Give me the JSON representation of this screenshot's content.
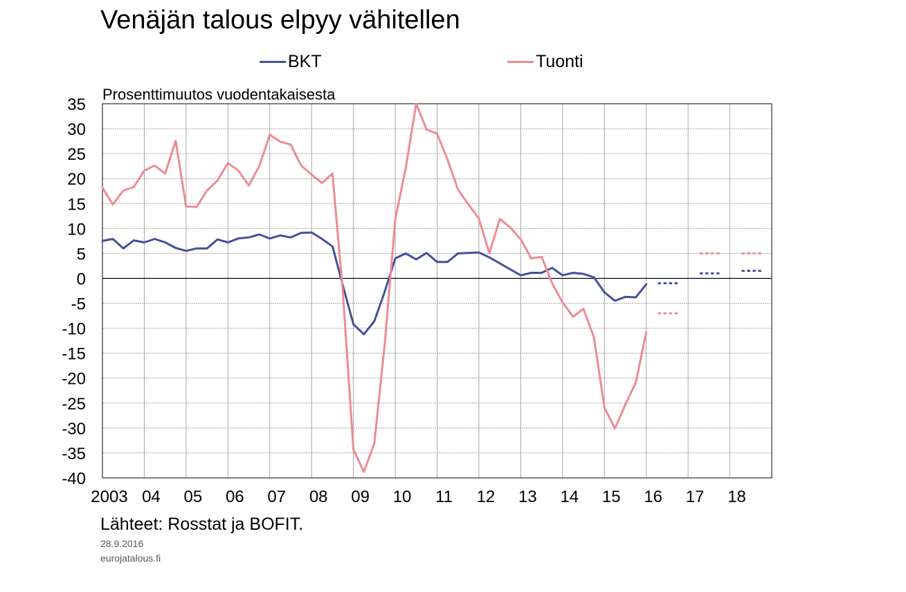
{
  "chart_data": {
    "type": "line",
    "title": "Venäjän talous elpyy vähitellen",
    "ylabel": "Prosenttimuutos vuodentakaisesta",
    "x_tick_labels": [
      "2003",
      "04",
      "05",
      "06",
      "07",
      "08",
      "09",
      "10",
      "11",
      "12",
      "13",
      "14",
      "15",
      "16",
      "17",
      "18"
    ],
    "y_tick_labels": [
      "35",
      "30",
      "25",
      "20",
      "15",
      "10",
      "5",
      "0",
      "-5",
      "-10",
      "-15",
      "-20",
      "-25",
      "-30",
      "-35",
      "-40"
    ],
    "ylim": [
      -40,
      35
    ],
    "xlim": [
      2003,
      2019
    ],
    "grid": true,
    "legend_position": "top",
    "series": [
      {
        "name": "BKT",
        "color": "#43509a",
        "x": [
          2003.0,
          2003.25,
          2003.5,
          2003.75,
          2004.0,
          2004.25,
          2004.5,
          2004.75,
          2005.0,
          2005.25,
          2005.5,
          2005.75,
          2006.0,
          2006.25,
          2006.5,
          2006.75,
          2007.0,
          2007.25,
          2007.5,
          2007.75,
          2008.0,
          2008.25,
          2008.5,
          2008.75,
          2009.0,
          2009.25,
          2009.5,
          2009.75,
          2010.0,
          2010.25,
          2010.5,
          2010.75,
          2011.0,
          2011.25,
          2011.5,
          2011.75,
          2012.0,
          2012.25,
          2012.5,
          2012.75,
          2013.0,
          2013.25,
          2013.5,
          2013.75,
          2014.0,
          2014.25,
          2014.5,
          2014.75,
          2015.0,
          2015.25,
          2015.5,
          2015.75,
          2016.0
        ],
        "values": [
          7.5,
          7.9,
          6.0,
          7.6,
          7.2,
          7.9,
          7.2,
          6.1,
          5.5,
          6.0,
          6.0,
          7.8,
          7.2,
          8.0,
          8.2,
          8.8,
          8.0,
          8.6,
          8.2,
          9.1,
          9.2,
          7.9,
          6.4,
          -1.5,
          -9.2,
          -11.2,
          -8.6,
          -2.6,
          4.0,
          5.0,
          3.8,
          5.1,
          3.3,
          3.3,
          5.0,
          5.1,
          5.2,
          4.2,
          3.0,
          1.8,
          0.6,
          1.1,
          1.1,
          2.1,
          0.6,
          1.1,
          0.9,
          0.2,
          -2.8,
          -4.5,
          -3.7,
          -3.8,
          -1.2
        ]
      },
      {
        "name": "Tuonti",
        "color": "#ee8a92",
        "x": [
          2003.0,
          2003.25,
          2003.5,
          2003.75,
          2004.0,
          2004.25,
          2004.5,
          2004.75,
          2005.0,
          2005.25,
          2005.5,
          2005.75,
          2006.0,
          2006.25,
          2006.5,
          2006.75,
          2007.0,
          2007.25,
          2007.5,
          2007.75,
          2008.0,
          2008.25,
          2008.5,
          2008.75,
          2009.0,
          2009.25,
          2009.5,
          2009.75,
          2010.0,
          2010.25,
          2010.5,
          2010.75,
          2011.0,
          2011.25,
          2011.5,
          2011.75,
          2012.0,
          2012.25,
          2012.5,
          2012.75,
          2013.0,
          2013.25,
          2013.5,
          2013.75,
          2014.0,
          2014.25,
          2014.5,
          2014.75,
          2015.0,
          2015.25,
          2015.5,
          2015.75,
          2016.0
        ],
        "values": [
          18.2,
          14.8,
          17.6,
          18.3,
          21.6,
          22.6,
          21.0,
          27.6,
          14.4,
          14.3,
          17.6,
          19.6,
          23.1,
          21.6,
          18.6,
          22.5,
          28.8,
          27.4,
          26.8,
          22.6,
          20.8,
          19.1,
          21.0,
          -3.0,
          -34.3,
          -38.8,
          -33.1,
          -13.0,
          11.9,
          22.1,
          35.0,
          29.8,
          29.0,
          23.8,
          17.8,
          14.8,
          12.0,
          5.0,
          11.9,
          10.2,
          7.8,
          4.0,
          4.3,
          -1.0,
          -4.8,
          -7.7,
          -6.1,
          -11.8,
          -25.9,
          -30.1,
          -25.3,
          -20.9,
          -10.8
        ]
      }
    ],
    "forecasts": [
      {
        "series": "BKT",
        "x0": 2016.3,
        "x1": 2016.75,
        "value": -1.0
      },
      {
        "series": "BKT",
        "x0": 2017.3,
        "x1": 2017.75,
        "value": 1.0
      },
      {
        "series": "BKT",
        "x0": 2018.3,
        "x1": 2018.75,
        "value": 1.5
      },
      {
        "series": "Tuonti",
        "x0": 2016.3,
        "x1": 2016.75,
        "value": -7.0
      },
      {
        "series": "Tuonti",
        "x0": 2017.3,
        "x1": 2017.75,
        "value": 5.0
      },
      {
        "series": "Tuonti",
        "x0": 2018.3,
        "x1": 2018.75,
        "value": 5.0
      }
    ]
  },
  "legend": [
    {
      "label": "BKT",
      "color": "#43509a"
    },
    {
      "label": "Tuonti",
      "color": "#ee8a92"
    }
  ],
  "footer": {
    "source": "Lähteet: Rosstat ja BOFIT.",
    "date": "28.9.2016",
    "site": "eurojatalous.fi"
  }
}
